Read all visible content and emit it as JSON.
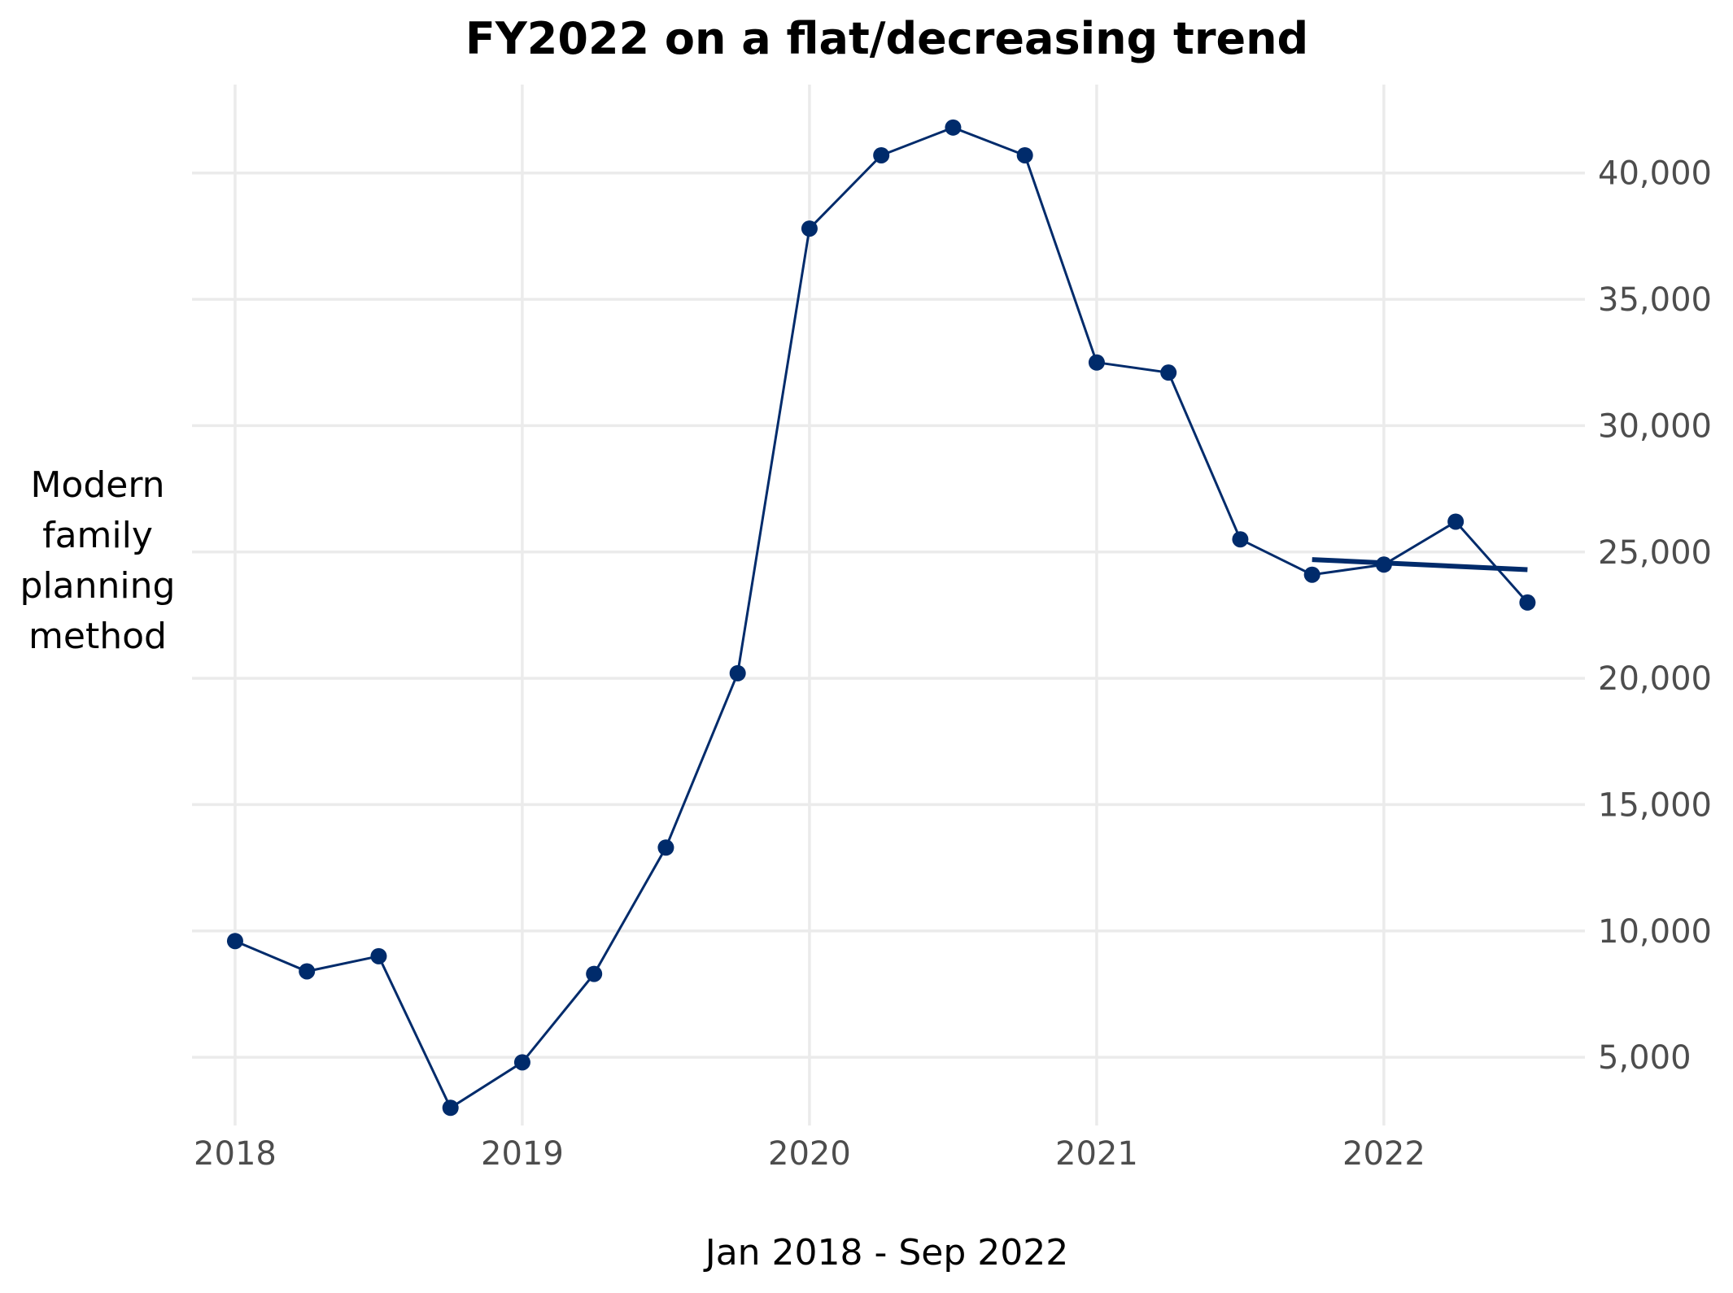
{
  "chart_data": {
    "type": "line",
    "title": "FY2022 on a flat/decreasing trend",
    "xlabel": "Jan 2018 - Sep 2022",
    "ylabel": "Modern family planning method",
    "xlim": [
      2017.85,
      2022.7
    ],
    "ylim": [
      2300,
      43500
    ],
    "x_ticks": [
      2018,
      2019,
      2020,
      2021,
      2022
    ],
    "x_tick_labels": [
      "2018",
      "2019",
      "2020",
      "2021",
      "2022"
    ],
    "y_ticks": [
      5000,
      10000,
      15000,
      20000,
      25000,
      30000,
      35000,
      40000
    ],
    "y_tick_labels": [
      "5,000",
      "10,000",
      "15,000",
      "20,000",
      "25,000",
      "30,000",
      "35,000",
      "40,000"
    ],
    "y_axis_position": "right",
    "grid": true,
    "legend": "none",
    "series": [
      {
        "x": [
          2018.0,
          2018.25,
          2018.5,
          2018.75,
          2019.0,
          2019.25,
          2019.5,
          2019.75,
          2020.0,
          2020.25,
          2020.5,
          2020.75,
          2021.0,
          2021.25,
          2021.5,
          2021.75,
          2022.0,
          2022.25,
          2022.5
        ],
        "values": [
          9600,
          8400,
          9000,
          3000,
          4800,
          8300,
          13300,
          20200,
          37800,
          40700,
          41800,
          40700,
          32500,
          32100,
          25500,
          24100,
          24500,
          26200,
          23000
        ],
        "color": "#002b6b"
      }
    ],
    "trend_line": {
      "x": [
        2021.75,
        2022.5
      ],
      "values": [
        24700,
        24300
      ],
      "color": "#002b6b"
    }
  }
}
